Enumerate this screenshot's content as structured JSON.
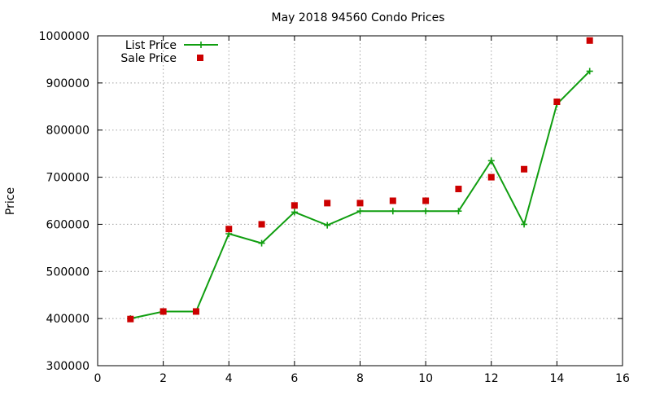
{
  "chart_data": {
    "type": "line",
    "title": "May 2018 94560 Condo Prices",
    "xlabel": "",
    "ylabel": "Price",
    "xlim": [
      0,
      16
    ],
    "ylim": [
      300000,
      1000000
    ],
    "x_ticks": [
      "0",
      "2",
      "4",
      "6",
      "8",
      "10",
      "12",
      "14",
      "16"
    ],
    "y_ticks": [
      "300000",
      "400000",
      "500000",
      "600000",
      "700000",
      "800000",
      "900000",
      "1000000"
    ],
    "grid": true,
    "legend_position": "top-left",
    "series": [
      {
        "name": "List Price",
        "style": "line-with-plus",
        "color": "#109e10",
        "x": [
          1,
          2,
          3,
          4,
          5,
          6,
          7,
          8,
          9,
          10,
          11,
          12,
          13,
          14,
          15
        ],
        "y": [
          400000,
          415000,
          415000,
          580000,
          560000,
          626000,
          598000,
          628000,
          628000,
          628000,
          628000,
          735000,
          600000,
          855000,
          925000
        ]
      },
      {
        "name": "Sale Price",
        "style": "square-markers",
        "color": "#cc0000",
        "x": [
          1,
          2,
          3,
          4,
          5,
          6,
          7,
          8,
          9,
          10,
          11,
          12,
          13,
          14,
          15
        ],
        "y": [
          399000,
          415000,
          415000,
          590000,
          600000,
          640000,
          645000,
          645000,
          650000,
          650000,
          675000,
          700000,
          717000,
          860000,
          990000
        ]
      }
    ]
  }
}
